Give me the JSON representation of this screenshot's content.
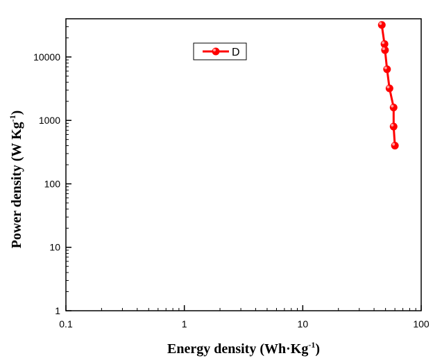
{
  "chart_data": {
    "type": "line",
    "x_scale": "log",
    "y_scale": "log",
    "xlim": [
      0.1,
      100
    ],
    "ylim": [
      1,
      40000
    ],
    "x_ticks": [
      0.1,
      1,
      10,
      100
    ],
    "x_tick_labels": [
      "0.1",
      "1",
      "10",
      "100"
    ],
    "y_ticks": [
      1,
      10,
      100,
      1000,
      10000
    ],
    "y_tick_labels": [
      "1",
      "10",
      "100",
      "1000",
      "10000"
    ],
    "xlabel": {
      "main": "Energy density (Wh·Kg",
      "sup": "-1",
      "end": ")"
    },
    "ylabel": {
      "main": "Power density (W Kg",
      "sup": "-1",
      "end": ")"
    },
    "legend": {
      "position": "top-center",
      "entries": [
        "D"
      ]
    },
    "grid": false,
    "series": [
      {
        "name": "D",
        "color": "#ff0000",
        "marker": "circle",
        "x": [
          46.5,
          49.0,
          49.5,
          51.5,
          54.0,
          58.5,
          58.5,
          60.0
        ],
        "y": [
          32000,
          16000,
          12800,
          6400,
          3200,
          1600,
          800,
          400
        ]
      }
    ]
  }
}
